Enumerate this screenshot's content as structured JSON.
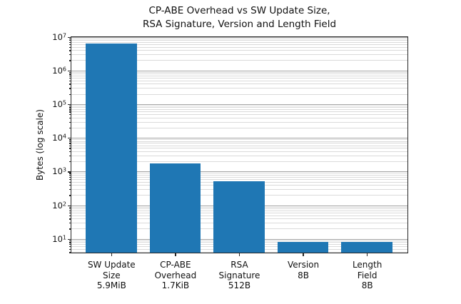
{
  "figure": {
    "background": "#ffffff"
  },
  "chart_data": {
    "type": "bar",
    "title": "CP-ABE Overhead vs SW Update Size,\nRSA Signature, Version and Length Field",
    "title_lines": [
      "CP-ABE Overhead vs SW Update Size,",
      "RSA Signature, Version and Length Field"
    ],
    "ylabel": "Bytes (log scale)",
    "yscale": "log",
    "ylim": [
      3.8,
      10000000
    ],
    "ytick_labels": [
      "10^1",
      "10^2",
      "10^3",
      "10^4",
      "10^5",
      "10^6",
      "10^7"
    ],
    "ytick_exponents": [
      1,
      2,
      3,
      4,
      5,
      6,
      7
    ],
    "grid": {
      "axis": "y",
      "which": "both",
      "major_color": "#a3a3a3",
      "minor_color": "#dadada"
    },
    "bar_color": "#1f77b4",
    "categories": [
      "SW Update Size",
      "CP-ABE Overhead",
      "RSA Signature",
      "Version",
      "Length Field"
    ],
    "x_tick_label_lines": [
      [
        "SW Update",
        "Size",
        "5.9MiB"
      ],
      [
        "CP-ABE",
        "Overhead",
        "1.7KiB"
      ],
      [
        "RSA",
        "Signature",
        "512B"
      ],
      [
        "Version",
        "8B"
      ],
      [
        "Length",
        "Field",
        "8B"
      ]
    ],
    "values": [
      6186598.4,
      1740.8,
      512,
      8,
      8
    ],
    "value_labels": [
      "5.9MiB",
      "1.7KiB",
      "512B",
      "8B",
      "8B"
    ]
  }
}
